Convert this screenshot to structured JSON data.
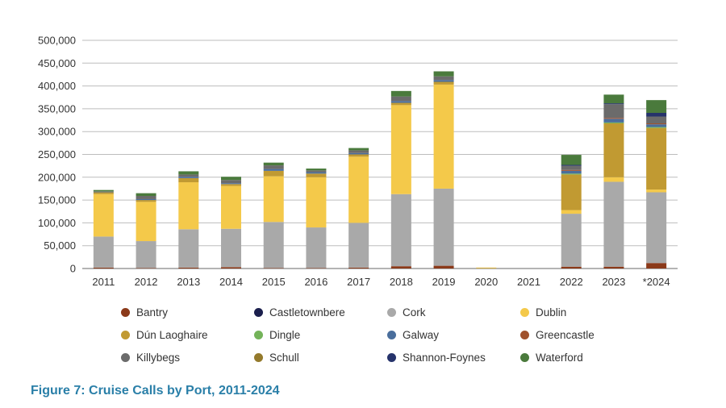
{
  "caption": "Figure 7: Cruise Calls by Port, 2011-2024",
  "chart_data": {
    "type": "bar",
    "stacked": true,
    "title": "",
    "xlabel": "",
    "ylabel": "",
    "ylim": [
      0,
      500000
    ],
    "yticks": [
      "0",
      "50,000",
      "100,000",
      "150,000",
      "200,000",
      "250,000",
      "300,000",
      "350,000",
      "400,000",
      "450,000",
      "500,000"
    ],
    "grid": true,
    "legend_position": "bottom",
    "categories": [
      "2011",
      "2012",
      "2013",
      "2014",
      "2015",
      "2016",
      "2017",
      "2018",
      "2019",
      "2020",
      "2021",
      "2022",
      "2023",
      "*2024"
    ],
    "series": [
      {
        "name": "Bantry",
        "color": "#8b3a1a",
        "values": [
          2000,
          1000,
          2000,
          3000,
          1000,
          1000,
          2000,
          5000,
          6000,
          0,
          0,
          4000,
          4000,
          12000
        ]
      },
      {
        "name": "Castletownbere",
        "color": "#1b1f4d",
        "values": [
          0,
          0,
          0,
          0,
          0,
          0,
          0,
          0,
          0,
          0,
          0,
          0,
          0,
          0
        ]
      },
      {
        "name": "Cork",
        "color": "#a9a9a9",
        "values": [
          68000,
          59000,
          84000,
          84000,
          101000,
          89000,
          98000,
          158000,
          169000,
          0,
          0,
          116000,
          186000,
          155000
        ]
      },
      {
        "name": "Dublin",
        "color": "#f4c94a",
        "values": [
          93000,
          86000,
          103000,
          94000,
          100000,
          110000,
          145000,
          195000,
          228000,
          1000,
          0,
          8000,
          10000,
          6000
        ]
      },
      {
        "name": "Dún Laoghaire",
        "color": "#c19a32",
        "values": [
          4000,
          4000,
          9000,
          4000,
          12000,
          8000,
          5000,
          5000,
          6000,
          1000,
          0,
          78000,
          118000,
          135000
        ]
      },
      {
        "name": "Dingle",
        "color": "#74b35a",
        "values": [
          0,
          0,
          0,
          0,
          0,
          0,
          0,
          0,
          0,
          0,
          0,
          2000,
          2000,
          2000
        ]
      },
      {
        "name": "Galway",
        "color": "#4a6e9c",
        "values": [
          1000,
          2000,
          3000,
          2000,
          4000,
          3000,
          3000,
          4000,
          4000,
          0,
          0,
          6000,
          8000,
          6000
        ]
      },
      {
        "name": "Greencastle",
        "color": "#a0522d",
        "values": [
          0,
          0,
          0,
          0,
          0,
          0,
          0,
          0,
          0,
          0,
          0,
          2000,
          2000,
          2000
        ]
      },
      {
        "name": "Killybegs",
        "color": "#6b6b6b",
        "values": [
          1000,
          7000,
          5000,
          7000,
          8000,
          4000,
          6000,
          10000,
          8000,
          0,
          0,
          9000,
          30000,
          15000
        ]
      },
      {
        "name": "Schull",
        "color": "#947a2c",
        "values": [
          0,
          0,
          0,
          0,
          0,
          0,
          0,
          0,
          0,
          0,
          0,
          0,
          0,
          0
        ]
      },
      {
        "name": "Shannon-Foynes",
        "color": "#26336b",
        "values": [
          0,
          0,
          0,
          0,
          0,
          0,
          0,
          0,
          0,
          0,
          0,
          2000,
          2000,
          8000
        ]
      },
      {
        "name": "Waterford",
        "color": "#4a7a3c",
        "values": [
          3000,
          6000,
          7000,
          7000,
          6000,
          4000,
          5000,
          12000,
          11000,
          0,
          0,
          22000,
          19000,
          28000
        ]
      }
    ]
  }
}
